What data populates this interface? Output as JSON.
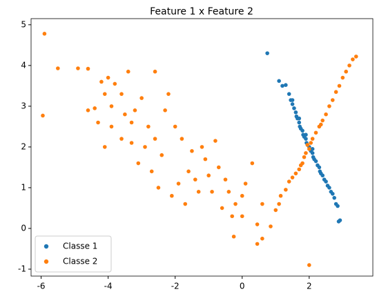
{
  "chart_data": {
    "type": "scatter",
    "title": "Feature 1 x Feature 2",
    "xlim": [
      -6.3,
      3.9
    ],
    "ylim": [
      -1.17,
      5.15
    ],
    "xticks": [
      -6,
      -4,
      -2,
      0,
      2
    ],
    "yticks": [
      -1,
      0,
      1,
      2,
      3,
      4,
      5
    ],
    "legend": "lower left",
    "series": [
      {
        "name": "Classe 1",
        "color": "#1f77b4",
        "x": [
          1.1,
          1.2,
          1.3,
          1.4,
          1.45,
          1.5,
          1.55,
          1.6,
          1.62,
          1.65,
          1.7,
          1.72,
          1.75,
          1.8,
          1.82,
          1.85,
          1.9,
          1.92,
          1.95,
          2.0,
          2.02,
          2.05,
          2.1,
          2.12,
          2.15,
          2.2,
          2.25,
          2.3,
          2.32,
          2.35,
          2.4,
          2.45,
          2.5,
          2.55,
          2.6,
          2.65,
          2.7,
          2.75,
          2.8,
          2.85,
          0.75,
          2.88,
          2.92,
          1.5,
          1.7,
          1.9,
          2.1
        ],
        "y": [
          3.62,
          3.5,
          3.52,
          3.3,
          3.15,
          3.05,
          2.95,
          2.85,
          2.75,
          2.7,
          2.6,
          2.5,
          2.45,
          2.4,
          2.3,
          2.25,
          2.2,
          2.1,
          2.05,
          2.0,
          1.95,
          1.9,
          1.85,
          1.75,
          1.7,
          1.65,
          1.55,
          1.5,
          1.4,
          1.35,
          1.3,
          1.2,
          1.15,
          1.05,
          1.0,
          0.9,
          0.85,
          0.75,
          0.6,
          0.55,
          4.3,
          0.17,
          0.2,
          3.15,
          2.7,
          2.3,
          1.95
        ]
      },
      {
        "name": "Classe 2",
        "color": "#ff7f0e",
        "x": [
          0.45,
          0.6,
          0.85,
          1.0,
          1.1,
          1.15,
          1.3,
          1.4,
          1.5,
          1.6,
          1.7,
          1.8,
          1.85,
          1.9,
          2.0,
          2.05,
          2.1,
          2.2,
          2.3,
          2.4,
          2.5,
          2.6,
          2.7,
          2.8,
          2.9,
          3.0,
          3.1,
          3.2,
          3.3,
          3.4,
          1.95,
          1.75,
          2.35,
          2.0,
          -5.9,
          -5.95,
          -5.5,
          -4.9,
          -4.6,
          -4.2,
          -4.0,
          -3.8,
          -4.1,
          -3.4,
          -3.6,
          -3.9,
          -4.4,
          -4.3,
          -3.9,
          -4.1,
          -3.6,
          -3.3,
          -3.2,
          -3.0,
          -2.6,
          -2.2,
          -2.3,
          -2.8,
          -3.3,
          -3.1,
          -2.6,
          -2.4,
          -2.0,
          -1.8,
          -1.5,
          -1.2,
          -0.8,
          -1.6,
          -1.9,
          -2.1,
          -2.5,
          -1.3,
          -1.0,
          -0.7,
          -0.5,
          -0.4,
          -0.2,
          0.0,
          0.3,
          0.1,
          -0.6,
          -0.3,
          0.45,
          -0.25,
          0.6,
          -1.1,
          -2.9,
          -3.5,
          -1.7,
          0.0,
          -4.6,
          -2.7,
          -1.4,
          -0.9
        ],
        "y": [
          -0.38,
          -0.25,
          0.05,
          0.45,
          0.6,
          0.8,
          0.95,
          1.15,
          1.25,
          1.35,
          1.45,
          1.6,
          1.75,
          1.85,
          1.95,
          2.1,
          2.2,
          2.35,
          2.5,
          2.65,
          2.8,
          3.0,
          3.15,
          3.35,
          3.5,
          3.7,
          3.85,
          4.0,
          4.15,
          4.22,
          2.05,
          1.55,
          2.55,
          -0.9,
          4.78,
          2.77,
          3.93,
          3.93,
          3.92,
          3.6,
          3.7,
          3.55,
          3.3,
          3.85,
          3.3,
          3.0,
          2.95,
          2.6,
          2.5,
          2.0,
          2.2,
          2.6,
          2.9,
          3.2,
          3.85,
          3.3,
          2.9,
          2.5,
          2.1,
          1.6,
          2.2,
          1.8,
          2.5,
          2.2,
          1.9,
          2.0,
          2.15,
          1.4,
          1.1,
          0.8,
          1.0,
          0.9,
          1.3,
          1.5,
          1.2,
          0.9,
          0.6,
          0.8,
          1.6,
          1.1,
          0.5,
          0.3,
          0.1,
          -0.2,
          0.6,
          1.7,
          2.0,
          2.8,
          0.6,
          0.3,
          2.9,
          1.4,
          1.2,
          0.9
        ]
      }
    ]
  }
}
